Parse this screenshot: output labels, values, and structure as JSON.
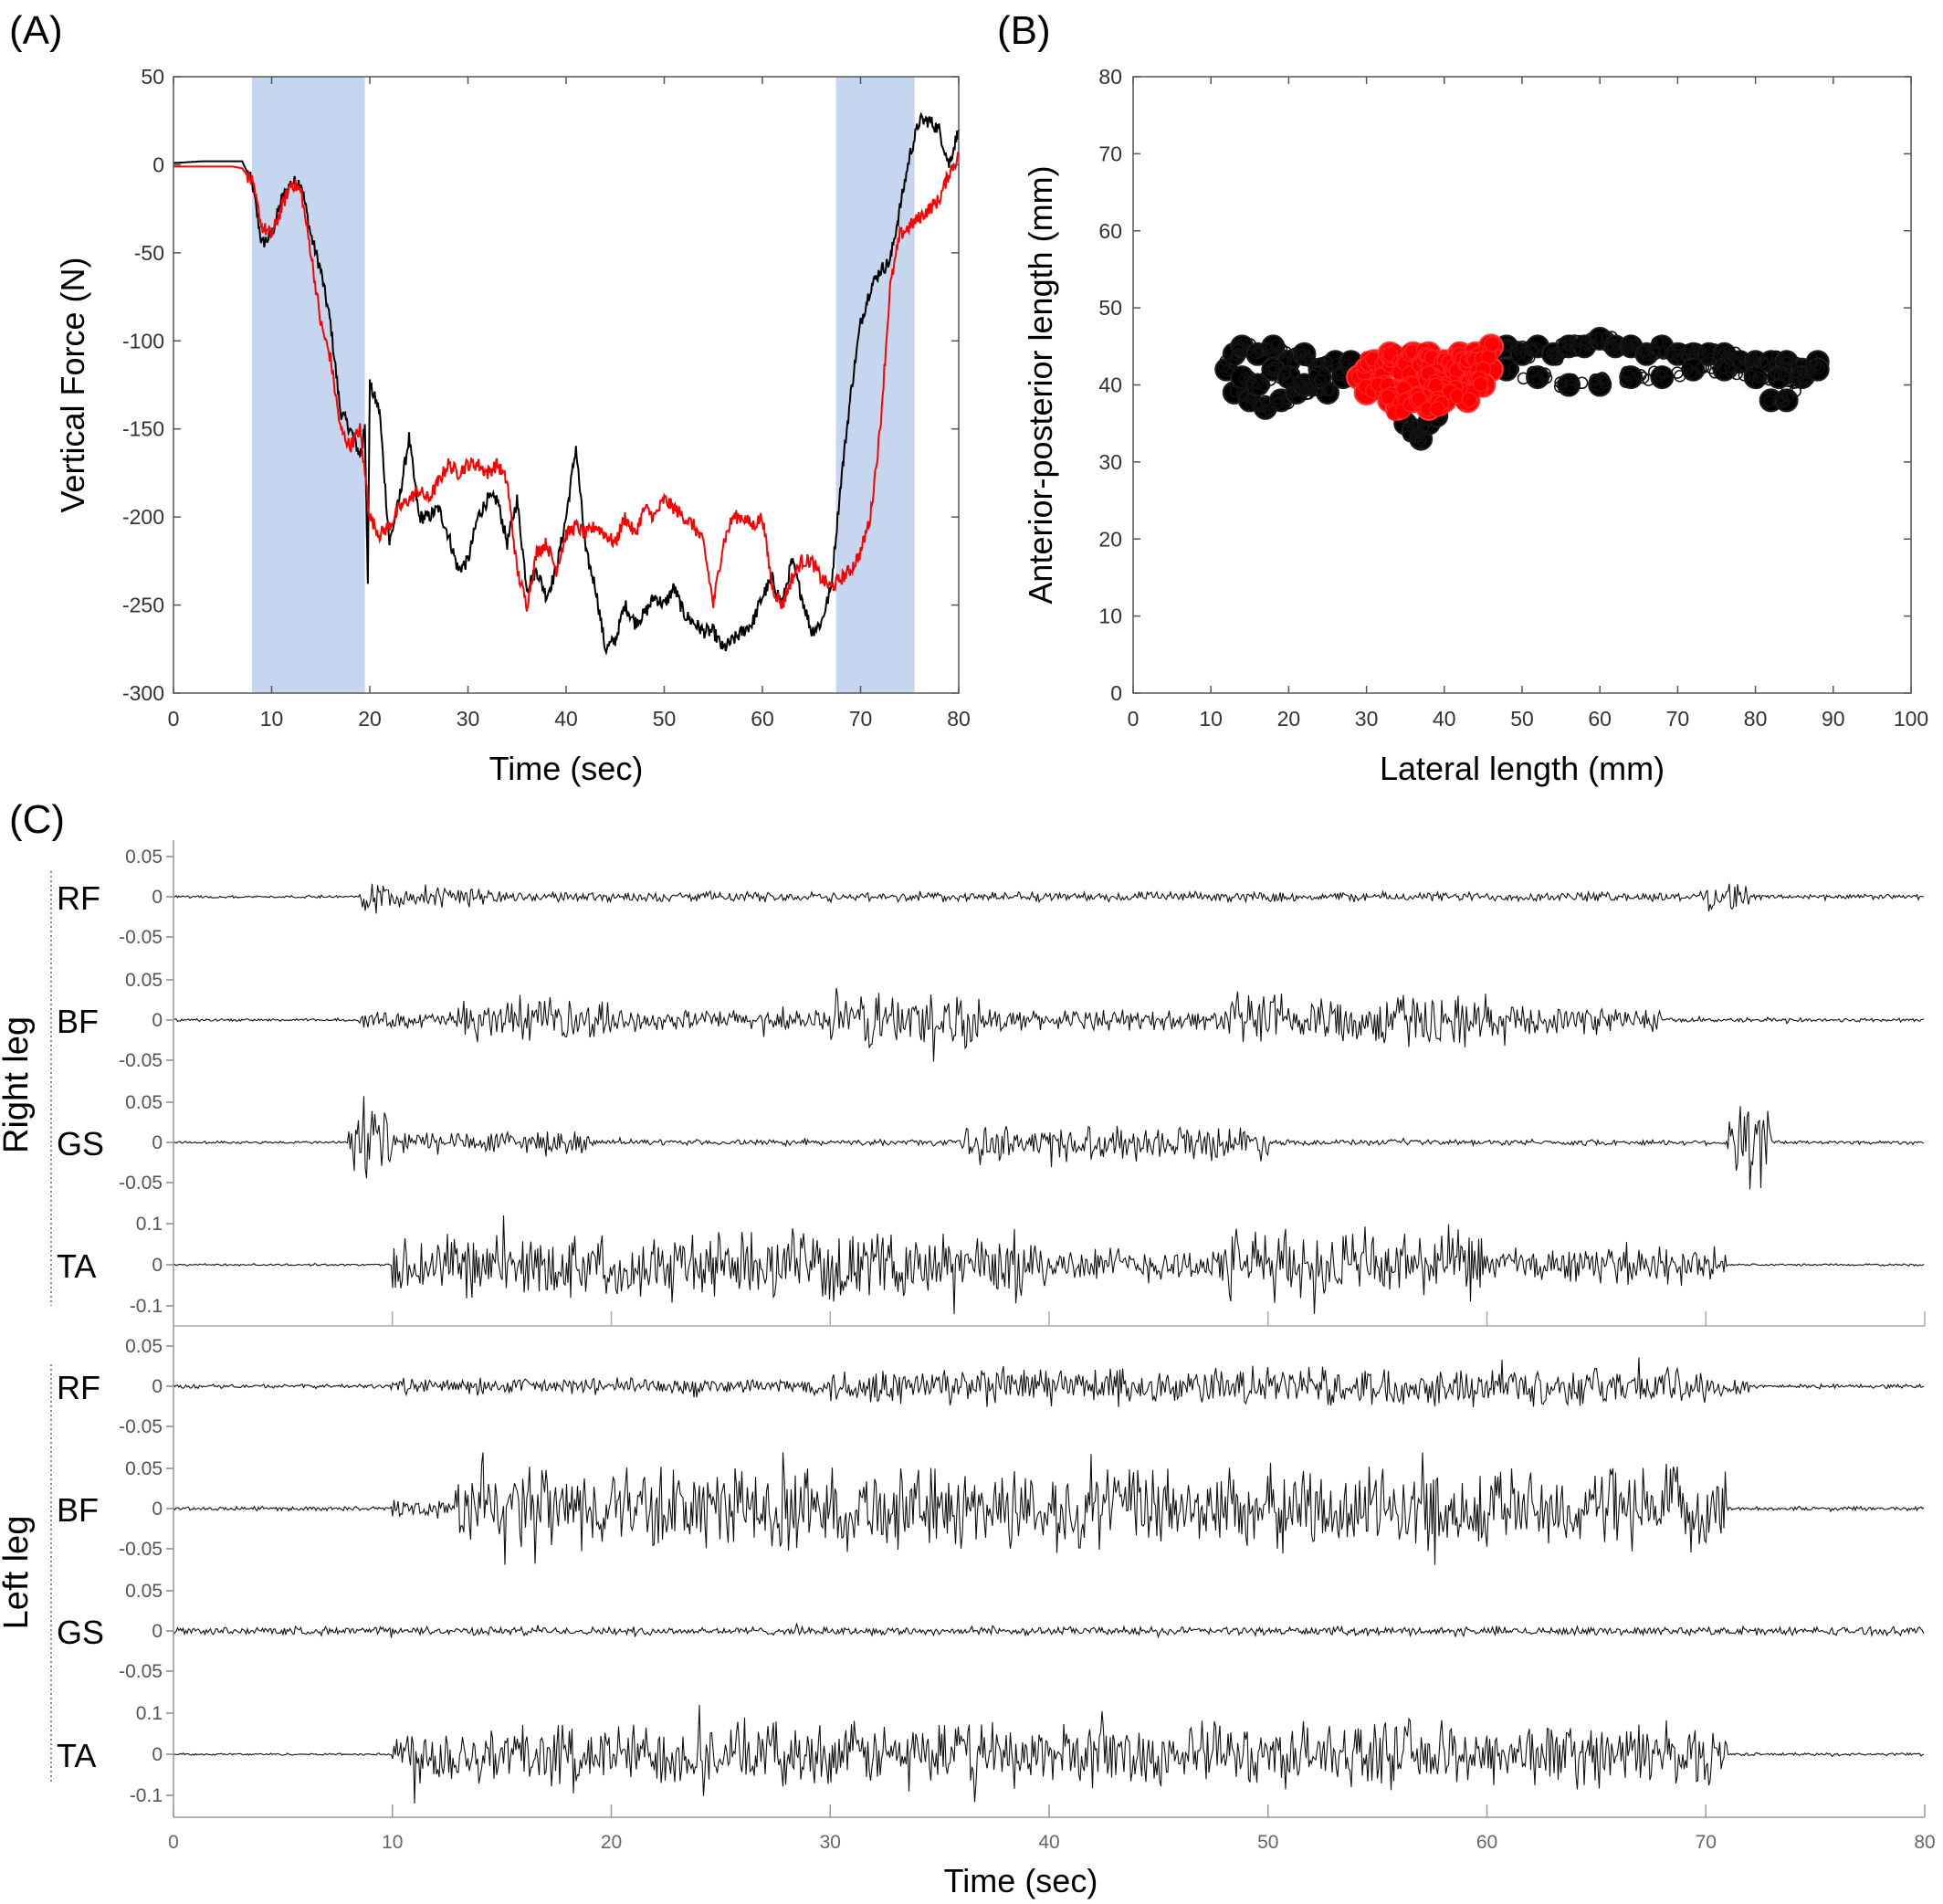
{
  "chart_data": [
    {
      "panel": "(A)",
      "type": "line",
      "xlabel": "Time (sec)",
      "ylabel": "Vertical Force (N)",
      "xlim": [
        0,
        80
      ],
      "ylim": [
        -300,
        50
      ],
      "xticks": [
        0,
        10,
        20,
        30,
        40,
        50,
        60,
        70,
        80
      ],
      "yticks": [
        50,
        0,
        -50,
        -100,
        -150,
        -200,
        -250,
        -300
      ],
      "shaded_regions": [
        [
          8,
          19.5
        ],
        [
          67.5,
          75.5
        ]
      ],
      "shade_color": "#c5d6ee",
      "grid": false,
      "series": [
        {
          "color": "#000000",
          "x": [
            0,
            3,
            6,
            7,
            8,
            9,
            10,
            11,
            12,
            13,
            14,
            15,
            16,
            17,
            18,
            19,
            19.5,
            19.8,
            20,
            21,
            22,
            23,
            24,
            25,
            26,
            27,
            28,
            29,
            30,
            31,
            32,
            33,
            34,
            35,
            36,
            37,
            38,
            39,
            40,
            41,
            42,
            43,
            44,
            45,
            46,
            47,
            48,
            49,
            50,
            51,
            52,
            53,
            54,
            55,
            56,
            57,
            58,
            59,
            60,
            61,
            62,
            63,
            64,
            65,
            66,
            67,
            68,
            69,
            70,
            71,
            72,
            73,
            74,
            75,
            76,
            77,
            78,
            79,
            80
          ],
          "y": [
            1,
            2,
            2,
            2,
            -10,
            -45,
            -40,
            -20,
            -10,
            -10,
            -40,
            -60,
            -90,
            -140,
            -150,
            -165,
            -150,
            -235,
            -125,
            -140,
            -215,
            -190,
            -155,
            -200,
            -200,
            -195,
            -210,
            -230,
            -225,
            -200,
            -190,
            -190,
            -215,
            -190,
            -240,
            -230,
            -245,
            -230,
            -200,
            -160,
            -220,
            -240,
            -275,
            -270,
            -250,
            -260,
            -255,
            -245,
            -250,
            -240,
            -255,
            -260,
            -265,
            -265,
            -275,
            -270,
            -265,
            -260,
            -245,
            -235,
            -250,
            -225,
            -245,
            -265,
            -260,
            -240,
            -180,
            -130,
            -90,
            -70,
            -60,
            -55,
            -25,
            5,
            25,
            25,
            20,
            0,
            20
          ]
        },
        {
          "color": "#ff0000",
          "x": [
            0,
            3,
            6,
            7,
            8,
            9,
            10,
            11,
            12,
            13,
            14,
            15,
            16,
            17,
            18,
            19,
            20,
            21,
            22,
            23,
            24,
            25,
            26,
            27,
            28,
            29,
            30,
            31,
            32,
            33,
            34,
            35,
            36,
            37,
            38,
            39,
            40,
            41,
            42,
            43,
            44,
            45,
            46,
            47,
            48,
            49,
            50,
            51,
            52,
            53,
            54,
            55,
            56,
            57,
            58,
            59,
            60,
            61,
            62,
            63,
            64,
            65,
            66,
            67,
            68,
            69,
            70,
            71,
            72,
            73,
            74,
            75,
            76,
            77,
            78,
            79,
            80
          ],
          "y": [
            -1,
            -1,
            -1,
            -2,
            -10,
            -35,
            -40,
            -25,
            -10,
            -15,
            -50,
            -90,
            -110,
            -150,
            -160,
            -150,
            -200,
            -210,
            -205,
            -195,
            -190,
            -185,
            -190,
            -180,
            -170,
            -175,
            -170,
            -170,
            -175,
            -170,
            -180,
            -230,
            -250,
            -220,
            -215,
            -230,
            -210,
            -205,
            -210,
            -205,
            -210,
            -215,
            -200,
            -210,
            -195,
            -200,
            -190,
            -195,
            -200,
            -205,
            -215,
            -250,
            -215,
            -200,
            -200,
            -205,
            -200,
            -240,
            -250,
            -235,
            -225,
            -225,
            -235,
            -240,
            -235,
            -230,
            -220,
            -200,
            -150,
            -70,
            -40,
            -35,
            -30,
            -25,
            -20,
            -5,
            5
          ]
        }
      ]
    },
    {
      "panel": "(B)",
      "type": "scatter",
      "xlabel": "Lateral length (mm)",
      "ylabel": "Anterior-posterior length (mm)",
      "xlim": [
        0,
        100
      ],
      "ylim": [
        0,
        80
      ],
      "xticks": [
        0,
        10,
        20,
        30,
        40,
        50,
        60,
        70,
        80,
        90,
        100
      ],
      "yticks": [
        80,
        70,
        60,
        50,
        40,
        30,
        20,
        10,
        0
      ],
      "grid": false,
      "series": [
        {
          "color": "#000000",
          "marker": "circle",
          "x": [
            12,
            13,
            14,
            16,
            18,
            20,
            22,
            24,
            26,
            27,
            28,
            13,
            15,
            17,
            19,
            21,
            23,
            25,
            14,
            16,
            18,
            20,
            22,
            24,
            35,
            36,
            37,
            38,
            39,
            46,
            48,
            50,
            52,
            54,
            56,
            58,
            60,
            62,
            64,
            66,
            68,
            70,
            72,
            74,
            76,
            78,
            80,
            82,
            84,
            86,
            88,
            48,
            52,
            56,
            60,
            64,
            68,
            72,
            76,
            80,
            83,
            86,
            88,
            82,
            84
          ],
          "y": [
            42,
            44,
            45,
            44,
            45,
            43,
            44,
            42,
            43,
            41,
            43,
            39,
            38,
            37,
            38,
            39,
            40,
            39,
            41,
            40,
            42,
            41,
            40,
            41,
            35,
            34,
            33,
            35,
            36,
            44,
            45,
            44,
            45,
            44,
            45,
            45,
            46,
            45,
            45,
            44,
            45,
            44,
            44,
            44,
            44,
            43,
            43,
            43,
            43,
            42,
            43,
            42,
            41,
            40,
            40,
            41,
            41,
            42,
            42,
            41,
            41,
            41,
            42,
            38,
            38
          ]
        },
        {
          "color": "#ff0000",
          "marker": "circle",
          "x": [
            29,
            30,
            31,
            32,
            33,
            34,
            35,
            36,
            37,
            38,
            39,
            40,
            41,
            42,
            43,
            44,
            45,
            46,
            30,
            32,
            34,
            36,
            38,
            40,
            42,
            44,
            46,
            31,
            33,
            35,
            37,
            39,
            41,
            43,
            45,
            34,
            36,
            38,
            40
          ],
          "y": [
            41,
            42,
            43,
            42,
            44,
            43,
            42,
            44,
            43,
            44,
            41,
            43,
            42,
            44,
            43,
            44,
            43,
            45,
            39,
            40,
            39,
            40,
            41,
            40,
            39,
            41,
            42,
            41,
            38,
            39,
            38,
            40,
            39,
            38,
            40,
            37,
            38,
            37,
            38
          ]
        }
      ]
    },
    {
      "panel": "(C)",
      "type": "line",
      "xlabel": "Time (sec)",
      "xlim": [
        0,
        80
      ],
      "xticks": [
        0,
        10,
        20,
        30,
        40,
        50,
        60,
        70,
        80
      ],
      "group_labels": [
        "Right leg",
        "Left leg"
      ],
      "channels": [
        {
          "group": 0,
          "name": "RF",
          "ticks": [
            "0.05",
            "0",
            "-0.05"
          ],
          "ylim": [
            -0.07,
            0.07
          ],
          "activity": [
            [
              0,
              8.5,
              0.002
            ],
            [
              8.5,
              10,
              0.025
            ],
            [
              10,
              15,
              0.015
            ],
            [
              15,
              70,
              0.007
            ],
            [
              70,
              72,
              0.02
            ],
            [
              72,
              80,
              0.004
            ]
          ]
        },
        {
          "group": 0,
          "name": "BF",
          "ticks": [
            "0.05",
            "0",
            "-0.05"
          ],
          "ylim": [
            -0.07,
            0.07
          ],
          "activity": [
            [
              0,
              8.5,
              0.002
            ],
            [
              8.5,
              13,
              0.012
            ],
            [
              13,
              20,
              0.03
            ],
            [
              20,
              30,
              0.015
            ],
            [
              30,
              37,
              0.045
            ],
            [
              37,
              48,
              0.015
            ],
            [
              48,
              60,
              0.04
            ],
            [
              60,
              68,
              0.02
            ],
            [
              68,
              80,
              0.003
            ]
          ]
        },
        {
          "group": 0,
          "name": "GS",
          "ticks": [
            "0.05",
            "0",
            "-0.05"
          ],
          "ylim": [
            -0.07,
            0.07
          ],
          "activity": [
            [
              0,
              8,
              0.002
            ],
            [
              8,
              10,
              0.07
            ],
            [
              10,
              19,
              0.018
            ],
            [
              19,
              36,
              0.004
            ],
            [
              36,
              50,
              0.025
            ],
            [
              50,
              71,
              0.004
            ],
            [
              71,
              73,
              0.07
            ],
            [
              73,
              80,
              0.003
            ]
          ]
        },
        {
          "group": 0,
          "name": "TA",
          "ticks": [
            "0.1",
            "0",
            "-0.1"
          ],
          "ylim": [
            -0.12,
            0.12
          ],
          "activity": [
            [
              0,
              10,
              0.003
            ],
            [
              10,
              40,
              0.09
            ],
            [
              40,
              48,
              0.05
            ],
            [
              48,
              60,
              0.1
            ],
            [
              60,
              71,
              0.05
            ],
            [
              71,
              80,
              0.003
            ]
          ]
        },
        {
          "group": 1,
          "name": "RF",
          "ticks": [
            "0.05",
            "0",
            "-0.05"
          ],
          "ylim": [
            -0.07,
            0.07
          ],
          "activity": [
            [
              0,
              10,
              0.003
            ],
            [
              10,
              30,
              0.012
            ],
            [
              30,
              70,
              0.028
            ],
            [
              70,
              72,
              0.015
            ],
            [
              72,
              80,
              0.003
            ]
          ]
        },
        {
          "group": 1,
          "name": "BF",
          "ticks": [
            "0.05",
            "0",
            "-0.05"
          ],
          "ylim": [
            -0.07,
            0.07
          ],
          "activity": [
            [
              0,
              10,
              0.003
            ],
            [
              10,
              13,
              0.015
            ],
            [
              13,
              71,
              0.06
            ],
            [
              71,
              80,
              0.003
            ]
          ]
        },
        {
          "group": 1,
          "name": "GS",
          "ticks": [
            "0.05",
            "0",
            "-0.05"
          ],
          "ylim": [
            -0.07,
            0.07
          ],
          "activity": [
            [
              0,
              80,
              0.006
            ]
          ]
        },
        {
          "group": 1,
          "name": "TA",
          "ticks": [
            "0.1",
            "0",
            "-0.1"
          ],
          "ylim": [
            -0.12,
            0.12
          ],
          "activity": [
            [
              0,
              10,
              0.003
            ],
            [
              10,
              71,
              0.09
            ],
            [
              71,
              80,
              0.004
            ]
          ]
        }
      ]
    }
  ]
}
